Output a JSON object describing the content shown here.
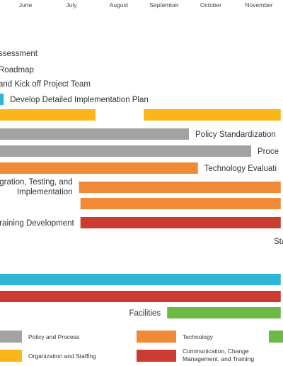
{
  "chart_data": {
    "type": "gantt",
    "title": "",
    "months": [
      "June",
      "July",
      "August",
      "September",
      "October",
      "November"
    ],
    "colors": {
      "policy_and_process": "#a3a3a3",
      "organization_and_staffing": "#fbb617",
      "technology": "#f08a36",
      "communication_change_management_training": "#cc3b32",
      "assessment_and_planning": "#2fb5d6",
      "facilities": "#6cb946"
    },
    "tasks": [
      {
        "name": "ssessment",
        "category": null
      },
      {
        "name": "Roadmap",
        "category": null
      },
      {
        "name": "and Kick off Project Team",
        "category": null
      },
      {
        "name": "Develop Detailed Implementation Plan",
        "category": "assessment_and_planning",
        "start": "May 2",
        "end": "Jun 2"
      },
      {
        "name": "",
        "category": "organization_and_staffing",
        "segments": [
          [
            "May 1",
            "Aug 1"
          ],
          [
            "Sep 2",
            "Nov 30"
          ]
        ]
      },
      {
        "name": "Policy Standardization",
        "category": "policy_and_process",
        "start": "May 1",
        "end": "Oct 1"
      },
      {
        "name": "Proce",
        "category": "policy_and_process",
        "start": "May 1",
        "end": "Nov 11"
      },
      {
        "name": "Technology Evaluati",
        "category": "technology",
        "start": "May 1",
        "end": "Oct 7"
      },
      {
        "name": "ntegration, Testing, and Implementation",
        "category": "technology",
        "start": "Jul 21",
        "end": "Nov 30"
      },
      {
        "name": "",
        "category": "technology",
        "start": "Jul 22",
        "end": "Nov 30"
      },
      {
        "name": "Training Development",
        "category": "communication_change_management_training",
        "start": "Jul 22",
        "end": "Nov 30"
      },
      {
        "name": "Sta",
        "category": null
      },
      {
        "name": "",
        "category": "assessment_and_planning",
        "start": "May 1",
        "end": "Nov 30"
      },
      {
        "name": "",
        "category": "communication_change_management_training",
        "start": "May 1",
        "end": "Nov 30"
      },
      {
        "name": "Facilities",
        "category": "facilities",
        "start": "Sep 17",
        "end": "Nov 30"
      }
    ],
    "legend": [
      {
        "label": "Policy and Process",
        "category": "policy_and_process"
      },
      {
        "label": "Organization and Staffing",
        "category": "organization_and_staffing"
      },
      {
        "label": "Technology",
        "category": "technology"
      },
      {
        "label": "Communication, Change Management, and Training",
        "category": "communication_change_management_training"
      },
      {
        "label": "",
        "category": "facilities"
      }
    ]
  }
}
